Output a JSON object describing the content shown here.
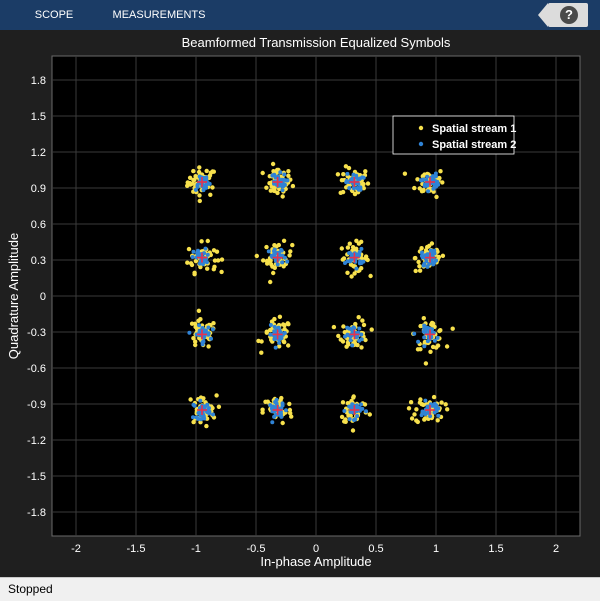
{
  "toolbar": {
    "tabs": [
      {
        "label": "SCOPE"
      },
      {
        "label": "MEASUREMENTS"
      }
    ],
    "help_icon": "question-mark-icon",
    "help_glyph": "?"
  },
  "status": {
    "text": "Stopped"
  },
  "colors": {
    "background": "#1f1f1f",
    "plot_background": "#000000",
    "toolbar": "#1b3c66",
    "grid": "#3a3a3a",
    "axis_text": "#ffffff",
    "stream1": "#f7e14d",
    "stream2": "#2f83d6",
    "reference_marker": "#e6334d"
  },
  "chart_data": {
    "type": "scatter",
    "title": "Beamformed Transmission Equalized Symbols",
    "xlabel": "In-phase Amplitude",
    "ylabel": "Quadrature Amplitude",
    "xlim": [
      -2.2,
      2.2
    ],
    "ylim": [
      -2.0,
      2.0
    ],
    "xticks": [
      -2,
      -1.5,
      -1,
      -0.5,
      0,
      0.5,
      1,
      1.5,
      2
    ],
    "xtick_labels": [
      "-2",
      "-1.5",
      "-1",
      "-0.5",
      "0",
      "0.5",
      "1",
      "1.5",
      "2"
    ],
    "yticks": [
      1.8,
      1.5,
      1.2,
      0.9,
      0.6,
      0.3,
      0,
      -0.3,
      -0.6,
      -0.9,
      -1.2,
      -1.5,
      -1.8
    ],
    "ytick_labels": [
      "1.8",
      "1.5",
      "1.2",
      "0.9",
      "0.6",
      "0.3",
      "0",
      "-0.3",
      "-0.6",
      "-0.9",
      "-1.2",
      "-1.5",
      "-1.8"
    ],
    "grid": true,
    "legend_position": "top-right",
    "constellation_points_x": [
      -0.95,
      -0.32,
      0.32,
      0.95
    ],
    "constellation_points_y": [
      0.95,
      0.32,
      -0.32,
      -0.95
    ],
    "series": [
      {
        "name": "Spatial stream 1",
        "color": "#f7e14d",
        "spread": 0.06,
        "count_per_point": 45
      },
      {
        "name": "Spatial stream 2",
        "color": "#2f83d6",
        "spread": 0.035,
        "count_per_point": 30
      }
    ]
  }
}
